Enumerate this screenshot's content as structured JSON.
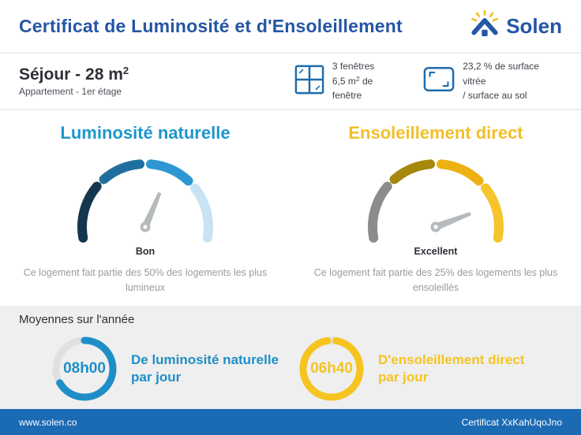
{
  "header": {
    "title": "Certificat de Luminosité et d'Ensoleillement",
    "brand": "Solen",
    "brand_color": "#2456a5",
    "ray_color": "#f2bf2b"
  },
  "property": {
    "name": "Séjour - 28 m",
    "name_sup": "2",
    "type": "Appartement - 1er étage",
    "windows_line1": "3 fenêtres",
    "windows_line2_pre": "6,5 m",
    "windows_line2_sup": "2",
    "windows_line2_post": " de fenêtre",
    "glazing_line1": "23,2 % de surface vitrée",
    "glazing_line2": "/ surface au sol",
    "icon_color": "#1e6cad"
  },
  "gauges": [
    {
      "title": "Luminosité naturelle",
      "title_color": "#1e97cc",
      "rating": "Bon",
      "description": "Ce logement fait partie des 50% des logements les plus lumineux",
      "needle_deg": 23,
      "needle_color": "#b5babd",
      "segments": [
        {
          "from": 190,
          "to": 140,
          "color": "#14374f"
        },
        {
          "from": 131,
          "to": 95,
          "color": "#1f6f9e"
        },
        {
          "from": 85,
          "to": 47,
          "color": "#2e97d3"
        },
        {
          "from": 38,
          "to": -10,
          "color": "#c9e2f4"
        }
      ]
    },
    {
      "title": "Ensoleillement direct",
      "title_color": "#f2bf2b",
      "rating": "Excellent",
      "description": "Ce logement fait partie des 25% des logements les plus ensoleillés",
      "needle_deg": 69,
      "needle_color": "#b5babd",
      "segments": [
        {
          "from": 190,
          "to": 140,
          "color": "#8c8c8c"
        },
        {
          "from": 131,
          "to": 95,
          "color": "#a5880c"
        },
        {
          "from": 85,
          "to": 47,
          "color": "#ecb214"
        },
        {
          "from": 38,
          "to": -10,
          "color": "#f6c42b"
        }
      ]
    }
  ],
  "averages": {
    "section_title": "Moyennes sur l'année",
    "items": [
      {
        "value": "08h00",
        "label_line1": "De luminosité naturelle",
        "label_line2": "par jour",
        "color": "#1e8fc6",
        "track_color": "#e0e0e4",
        "arc_deg": 240,
        "rotate_deg": -90
      },
      {
        "value": "06h40",
        "label_line1": "D'ensoleillement direct",
        "label_line2": "par jour",
        "color": "#f5c41f",
        "track_color": "#e0e0e4",
        "arc_deg": 342,
        "rotate_deg": -81
      }
    ]
  },
  "footer": {
    "left": "www.solen.co",
    "right": "Certificat XxKahUqoJno",
    "bg": "#1b6ab4"
  }
}
